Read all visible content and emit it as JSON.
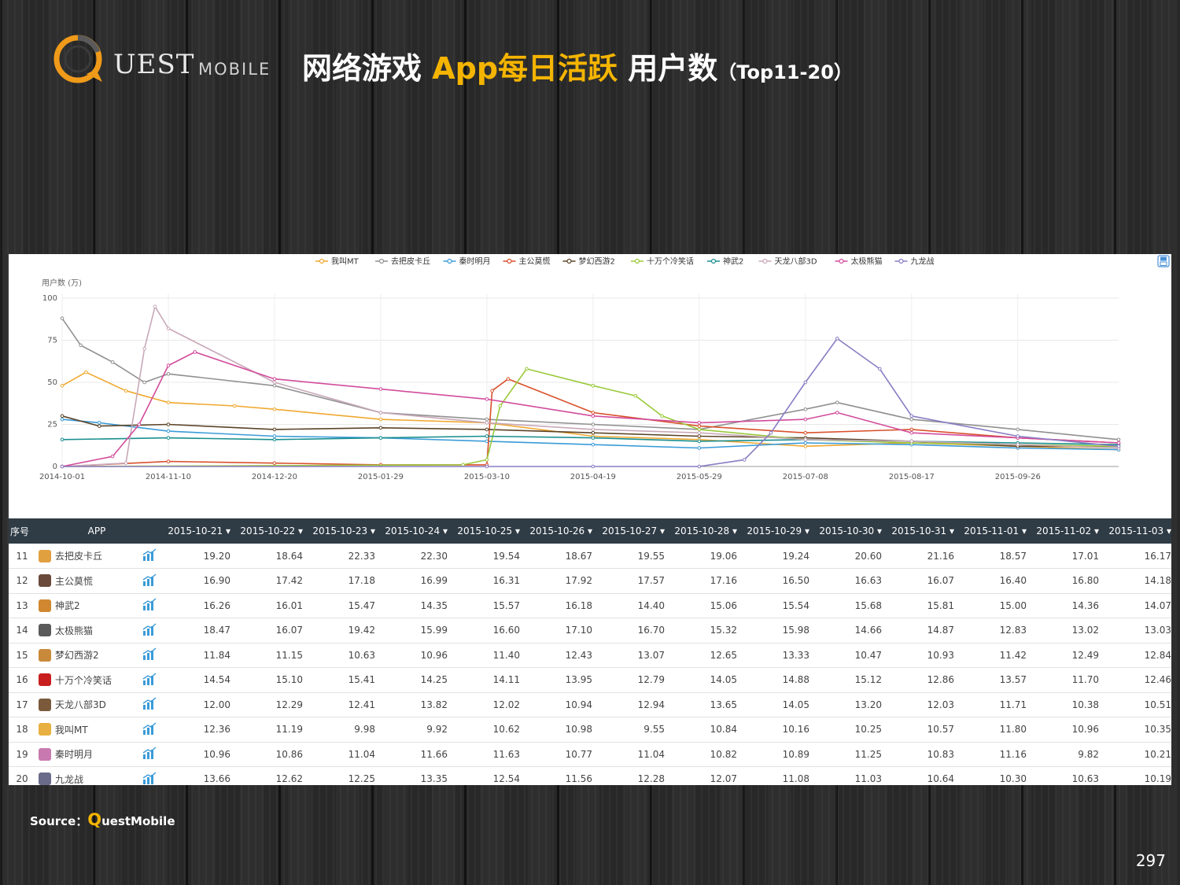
{
  "logo": {
    "q_letter": "Q",
    "text": "UEST",
    "sub": "MOBILE"
  },
  "title": {
    "part1": "网络游戏 ",
    "part2": "App每日活跃",
    "part3": " 用户数",
    "part4": "（Top11-20）"
  },
  "colors": {
    "accent": "#f4b400",
    "header_bg": "#2f3b45",
    "trend_icon": "#3a9bd8"
  },
  "export_icon": "save-icon",
  "chart_data": {
    "type": "line",
    "title": "",
    "xlabel": "",
    "ylabel": "用户数 (万)",
    "ylim": [
      0,
      100
    ],
    "y_ticks": [
      "0",
      "25",
      "50",
      "75",
      "100"
    ],
    "x_range": [
      "2014-10-01",
      "2015-11-03"
    ],
    "x_ticks": [
      "2014-10-01",
      "2014-11-10",
      "2014-12-20",
      "2015-01-29",
      "2015-03-10",
      "2015-04-19",
      "2015-05-29",
      "2015-07-08",
      "2015-08-17",
      "2015-09-26"
    ],
    "grid": true,
    "legend_position": "top-center",
    "series": [
      {
        "name": "我叫MT",
        "color": "#f0a830",
        "x": [
          "2014-10-01",
          "2014-10-10",
          "2014-10-25",
          "2014-11-10",
          "2014-12-05",
          "2014-12-20",
          "2015-01-29",
          "2015-03-10",
          "2015-04-19",
          "2015-05-29",
          "2015-07-08",
          "2015-08-17",
          "2015-09-26",
          "2015-11-03"
        ],
        "y": [
          48,
          56,
          45,
          38,
          36,
          34,
          28,
          26,
          18,
          16,
          12,
          14,
          12,
          10
        ]
      },
      {
        "name": "去把皮卡丘",
        "color": "#909090",
        "x": [
          "2014-10-01",
          "2014-10-08",
          "2014-10-20",
          "2014-11-01",
          "2014-11-10",
          "2014-12-20",
          "2015-01-29",
          "2015-03-10",
          "2015-04-19",
          "2015-05-29",
          "2015-07-08",
          "2015-07-20",
          "2015-08-17",
          "2015-09-26",
          "2015-11-03"
        ],
        "y": [
          88,
          72,
          62,
          50,
          55,
          48,
          32,
          28,
          25,
          22,
          34,
          38,
          28,
          22,
          16
        ]
      },
      {
        "name": "秦时明月",
        "color": "#3a9bd8",
        "x": [
          "2014-10-01",
          "2014-10-15",
          "2014-11-10",
          "2014-12-20",
          "2015-01-29",
          "2015-03-10",
          "2015-04-19",
          "2015-05-29",
          "2015-07-08",
          "2015-08-17",
          "2015-09-26",
          "2015-11-03"
        ],
        "y": [
          28,
          26,
          21,
          18,
          17,
          15,
          13,
          11,
          14,
          13,
          11,
          10
        ]
      },
      {
        "name": "主公莫慌",
        "color": "#d9512c",
        "x": [
          "2014-10-01",
          "2014-11-10",
          "2014-12-20",
          "2015-01-29",
          "2015-03-10",
          "2015-03-12",
          "2015-03-18",
          "2015-04-19",
          "2015-05-29",
          "2015-07-08",
          "2015-08-17",
          "2015-09-26",
          "2015-11-03"
        ],
        "y": [
          0,
          3,
          2,
          1,
          1,
          45,
          52,
          32,
          24,
          20,
          22,
          17,
          14
        ]
      },
      {
        "name": "梦幻西游2",
        "color": "#5c4428",
        "x": [
          "2014-10-01",
          "2014-10-15",
          "2014-11-10",
          "2014-12-20",
          "2015-01-29",
          "2015-03-10",
          "2015-04-19",
          "2015-05-29",
          "2015-07-08",
          "2015-08-17",
          "2015-09-26",
          "2015-11-03"
        ],
        "y": [
          30,
          24,
          25,
          22,
          23,
          22,
          20,
          18,
          17,
          15,
          12,
          12
        ]
      },
      {
        "name": "十万个冷笑话",
        "color": "#9ac93a",
        "x": [
          "2014-10-01",
          "2015-03-01",
          "2015-03-10",
          "2015-03-15",
          "2015-03-25",
          "2015-04-19",
          "2015-05-05",
          "2015-05-15",
          "2015-05-29",
          "2015-07-08",
          "2015-08-17",
          "2015-09-26",
          "2015-11-03"
        ],
        "y": [
          0,
          1,
          4,
          36,
          58,
          48,
          42,
          30,
          22,
          16,
          14,
          13,
          12
        ]
      },
      {
        "name": "神武2",
        "color": "#1a8f8f",
        "x": [
          "2014-10-01",
          "2014-11-10",
          "2014-12-20",
          "2015-01-29",
          "2015-03-10",
          "2015-04-19",
          "2015-05-29",
          "2015-07-08",
          "2015-08-17",
          "2015-09-26",
          "2015-11-03"
        ],
        "y": [
          16,
          17,
          16,
          17,
          18,
          17,
          15,
          16,
          15,
          14,
          13
        ]
      },
      {
        "name": "天龙八部3D",
        "color": "#c8a8b8",
        "x": [
          "2014-10-01",
          "2014-10-25",
          "2014-11-01",
          "2014-11-05",
          "2014-11-10",
          "2014-12-20",
          "2015-01-29",
          "2015-03-10",
          "2015-04-19",
          "2015-05-29",
          "2015-07-08",
          "2015-08-17",
          "2015-09-26",
          "2015-11-03"
        ],
        "y": [
          0,
          2,
          70,
          95,
          82,
          50,
          32,
          26,
          22,
          20,
          16,
          15,
          13,
          11
        ]
      },
      {
        "name": "太极熊猫",
        "color": "#d24c9c",
        "x": [
          "2014-10-01",
          "2014-10-20",
          "2014-10-30",
          "2014-11-10",
          "2014-11-20",
          "2014-12-20",
          "2015-01-29",
          "2015-03-10",
          "2015-04-19",
          "2015-05-29",
          "2015-07-08",
          "2015-07-20",
          "2015-08-17",
          "2015-09-26",
          "2015-11-03"
        ],
        "y": [
          0,
          6,
          25,
          60,
          68,
          52,
          46,
          40,
          30,
          26,
          28,
          32,
          20,
          17,
          14
        ]
      },
      {
        "name": "九龙战",
        "color": "#8a7cc4",
        "x": [
          "2014-10-01",
          "2015-03-10",
          "2015-04-19",
          "2015-05-29",
          "2015-06-15",
          "2015-06-25",
          "2015-07-08",
          "2015-07-20",
          "2015-08-05",
          "2015-08-17",
          "2015-09-26",
          "2015-11-03"
        ],
        "y": [
          0,
          0,
          0,
          0,
          4,
          20,
          50,
          76,
          58,
          30,
          18,
          12
        ]
      }
    ]
  },
  "table": {
    "headers": [
      "序号",
      "APP",
      "2015-10-21 ▾",
      "2015-10-22 ▾",
      "2015-10-23 ▾",
      "2015-10-24 ▾",
      "2015-10-25 ▾",
      "2015-10-26 ▾",
      "2015-10-27 ▾",
      "2015-10-28 ▾",
      "2015-10-29 ▾",
      "2015-10-30 ▾",
      "2015-10-31 ▾",
      "2015-11-01 ▾",
      "2015-11-02 ▾",
      "2015-11-03 ▾"
    ],
    "rows": [
      {
        "rank": "11",
        "app": "去把皮卡丘",
        "icon_color": "#e0a040",
        "values": [
          "19.20",
          "18.64",
          "22.33",
          "22.30",
          "19.54",
          "18.67",
          "19.55",
          "19.06",
          "19.24",
          "20.60",
          "21.16",
          "18.57",
          "17.01",
          "16.17"
        ]
      },
      {
        "rank": "12",
        "app": "主公莫慌",
        "icon_color": "#6a4a3a",
        "values": [
          "16.90",
          "17.42",
          "17.18",
          "16.99",
          "16.31",
          "17.92",
          "17.57",
          "17.16",
          "16.50",
          "16.63",
          "16.07",
          "16.40",
          "16.80",
          "14.18"
        ]
      },
      {
        "rank": "13",
        "app": "神武2",
        "icon_color": "#d08830",
        "values": [
          "16.26",
          "16.01",
          "15.47",
          "14.35",
          "15.57",
          "16.18",
          "14.40",
          "15.06",
          "15.54",
          "15.68",
          "15.81",
          "15.00",
          "14.36",
          "14.07"
        ]
      },
      {
        "rank": "14",
        "app": "太极熊猫",
        "icon_color": "#5a5a5a",
        "values": [
          "18.47",
          "16.07",
          "19.42",
          "15.99",
          "16.60",
          "17.10",
          "16.70",
          "15.32",
          "15.98",
          "14.66",
          "14.87",
          "12.83",
          "13.02",
          "13.03"
        ]
      },
      {
        "rank": "15",
        "app": "梦幻西游2",
        "icon_color": "#c88a3a",
        "values": [
          "11.84",
          "11.15",
          "10.63",
          "10.96",
          "11.40",
          "12.43",
          "13.07",
          "12.65",
          "13.33",
          "10.47",
          "10.93",
          "11.42",
          "12.49",
          "12.84"
        ]
      },
      {
        "rank": "16",
        "app": "十万个冷笑话",
        "icon_color": "#c81e1e",
        "values": [
          "14.54",
          "15.10",
          "15.41",
          "14.25",
          "14.11",
          "13.95",
          "12.79",
          "14.05",
          "14.88",
          "15.12",
          "12.86",
          "13.57",
          "11.70",
          "12.46"
        ]
      },
      {
        "rank": "17",
        "app": "天龙八部3D",
        "icon_color": "#7a5a3a",
        "values": [
          "12.00",
          "12.29",
          "12.41",
          "13.82",
          "12.02",
          "10.94",
          "12.94",
          "13.65",
          "14.05",
          "13.20",
          "12.03",
          "11.71",
          "10.38",
          "10.51"
        ]
      },
      {
        "rank": "18",
        "app": "我叫MT",
        "icon_color": "#e8b040",
        "values": [
          "12.36",
          "11.19",
          "9.98",
          "9.92",
          "10.62",
          "10.98",
          "9.55",
          "10.84",
          "10.16",
          "10.25",
          "10.57",
          "11.80",
          "10.96",
          "10.35"
        ]
      },
      {
        "rank": "19",
        "app": "秦时明月",
        "icon_color": "#c87ab0",
        "values": [
          "10.96",
          "10.86",
          "11.04",
          "11.66",
          "11.63",
          "10.77",
          "11.04",
          "10.82",
          "10.89",
          "11.25",
          "10.83",
          "11.16",
          "9.82",
          "10.21"
        ]
      },
      {
        "rank": "20",
        "app": "九龙战",
        "icon_color": "#6a6a8a",
        "values": [
          "13.66",
          "12.62",
          "12.25",
          "13.35",
          "12.54",
          "11.56",
          "12.28",
          "12.07",
          "11.08",
          "11.03",
          "10.64",
          "10.30",
          "10.63",
          "10.19"
        ]
      }
    ]
  },
  "source": {
    "label": "Source：",
    "q": "Q",
    "rest": "uestMobile"
  },
  "page_number": "297"
}
